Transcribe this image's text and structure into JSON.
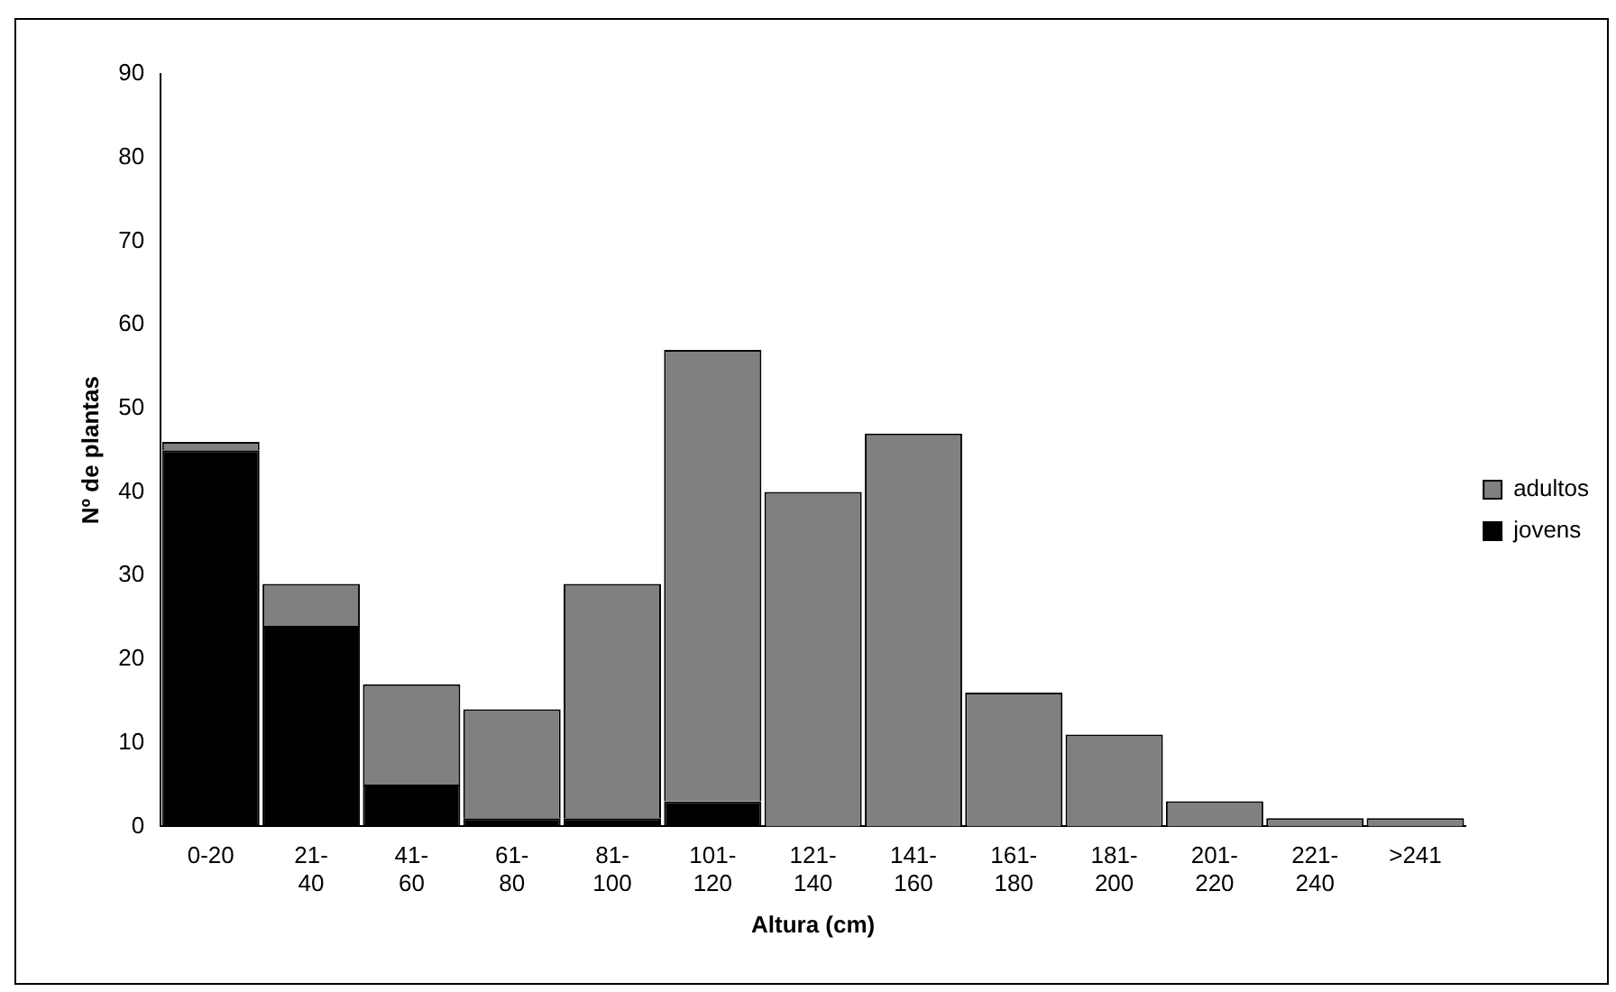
{
  "chart_data": {
    "type": "bar",
    "stacked": true,
    "xlabel": "Altura (cm)",
    "ylabel": "Nº de plantas",
    "categories": [
      "0-20",
      "21-40",
      "41-60",
      "61-80",
      "81-100",
      "101-120",
      "121-140",
      "141-160",
      "161-180",
      "181-200",
      "201-220",
      "221-240",
      ">241"
    ],
    "series": [
      {
        "name": "jovens",
        "color": "#000000",
        "values": [
          45,
          24,
          5,
          1,
          1,
          3,
          0,
          0,
          0,
          0,
          0,
          0,
          0
        ]
      },
      {
        "name": "adultos",
        "color": "#808080",
        "values": [
          1,
          5,
          12,
          13,
          28,
          54,
          40,
          47,
          16,
          11,
          3,
          1,
          1
        ]
      }
    ],
    "ylim": [
      0,
      90
    ],
    "yticks": [
      0,
      10,
      20,
      30,
      40,
      50,
      60,
      70,
      80,
      90
    ],
    "grid": false,
    "legend": "right"
  }
}
